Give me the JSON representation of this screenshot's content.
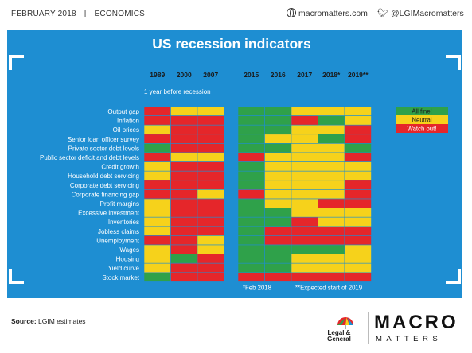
{
  "header": {
    "date": "FEBRUARY 2018",
    "separator": "|",
    "section": "ECONOMICS",
    "website": "macromatters.com",
    "twitter": "@LGIMacromatters"
  },
  "chart_data": {
    "type": "heatmap",
    "title": "US recession indicators",
    "historical_columns": [
      "1989",
      "2000",
      "2007"
    ],
    "historical_note": "1 year before recession",
    "recent_columns": [
      "2015",
      "2016",
      "2017",
      "2018*",
      "2019**"
    ],
    "rows": [
      "Output gap",
      "Inflation",
      "Oil prices",
      "Senior loan officer survey",
      "Private sector debt levels",
      "Public sector deficit and debt levels",
      "Credit growth",
      "Household debt servicing",
      "Corporate debt servicing",
      "Corporate financing gap",
      "Profit margins",
      "Excessive investment",
      "Inventories",
      "Jobless claims",
      "Unemployment",
      "Wages",
      "Housing",
      "Yield curve",
      "Stock market"
    ],
    "legend": [
      {
        "label": "All fine!",
        "color": "#2fa14a"
      },
      {
        "label": "Neutral",
        "color": "#f6d21b"
      },
      {
        "label": "Watch out!",
        "color": "#e5262a"
      }
    ],
    "status_codes": {
      "G": "All fine!",
      "Y": "Neutral",
      "R": "Watch out!"
    },
    "historical_values": [
      [
        "R",
        "Y",
        "Y"
      ],
      [
        "R",
        "R",
        "R"
      ],
      [
        "Y",
        "R",
        "R"
      ],
      [
        "R",
        "R",
        "R"
      ],
      [
        "G",
        "R",
        "R"
      ],
      [
        "R",
        "Y",
        "Y"
      ],
      [
        "Y",
        "R",
        "R"
      ],
      [
        "Y",
        "R",
        "R"
      ],
      [
        "R",
        "R",
        "R"
      ],
      [
        "R",
        "R",
        "Y"
      ],
      [
        "Y",
        "R",
        "R"
      ],
      [
        "Y",
        "R",
        "R"
      ],
      [
        "Y",
        "R",
        "R"
      ],
      [
        "Y",
        "R",
        "R"
      ],
      [
        "R",
        "R",
        "Y"
      ],
      [
        "Y",
        "R",
        "Y"
      ],
      [
        "Y",
        "G",
        "R"
      ],
      [
        "Y",
        "R",
        "R"
      ],
      [
        "G",
        "R",
        "R"
      ]
    ],
    "recent_values": [
      [
        "G",
        "G",
        "Y",
        "Y",
        "Y"
      ],
      [
        "G",
        "G",
        "R",
        "G",
        "Y"
      ],
      [
        "G",
        "G",
        "Y",
        "Y",
        "R"
      ],
      [
        "G",
        "Y",
        "Y",
        "G",
        "R"
      ],
      [
        "G",
        "G",
        "Y",
        "Y",
        "G"
      ],
      [
        "R",
        "Y",
        "Y",
        "Y",
        "R"
      ],
      [
        "G",
        "Y",
        "Y",
        "Y",
        "Y"
      ],
      [
        "G",
        "Y",
        "Y",
        "Y",
        "Y"
      ],
      [
        "G",
        "Y",
        "Y",
        "Y",
        "R"
      ],
      [
        "R",
        "Y",
        "Y",
        "Y",
        "R"
      ],
      [
        "G",
        "Y",
        "Y",
        "R",
        "R"
      ],
      [
        "G",
        "G",
        "Y",
        "Y",
        "Y"
      ],
      [
        "G",
        "G",
        "R",
        "Y",
        "Y"
      ],
      [
        "G",
        "R",
        "R",
        "R",
        "R"
      ],
      [
        "G",
        "R",
        "R",
        "R",
        "R"
      ],
      [
        "G",
        "G",
        "G",
        "G",
        "Y"
      ],
      [
        "G",
        "G",
        "Y",
        "Y",
        "Y"
      ],
      [
        "G",
        "G",
        "Y",
        "Y",
        "Y"
      ],
      [
        "R",
        "R",
        "R",
        "R",
        "R"
      ]
    ],
    "notes": [
      "*Feb 2018",
      "**Expected start of 2019"
    ]
  },
  "footer": {
    "source_label": "Source:",
    "source_text": "LGIM estimates",
    "logo_line1": "Legal &",
    "logo_line2": "General",
    "brand_top": "MACRO",
    "brand_bottom": "MATTERS"
  },
  "colors": {
    "panel": "#1e8ed2",
    "green": "#2fa14a",
    "yellow": "#f6d21b",
    "red": "#e5262a"
  }
}
